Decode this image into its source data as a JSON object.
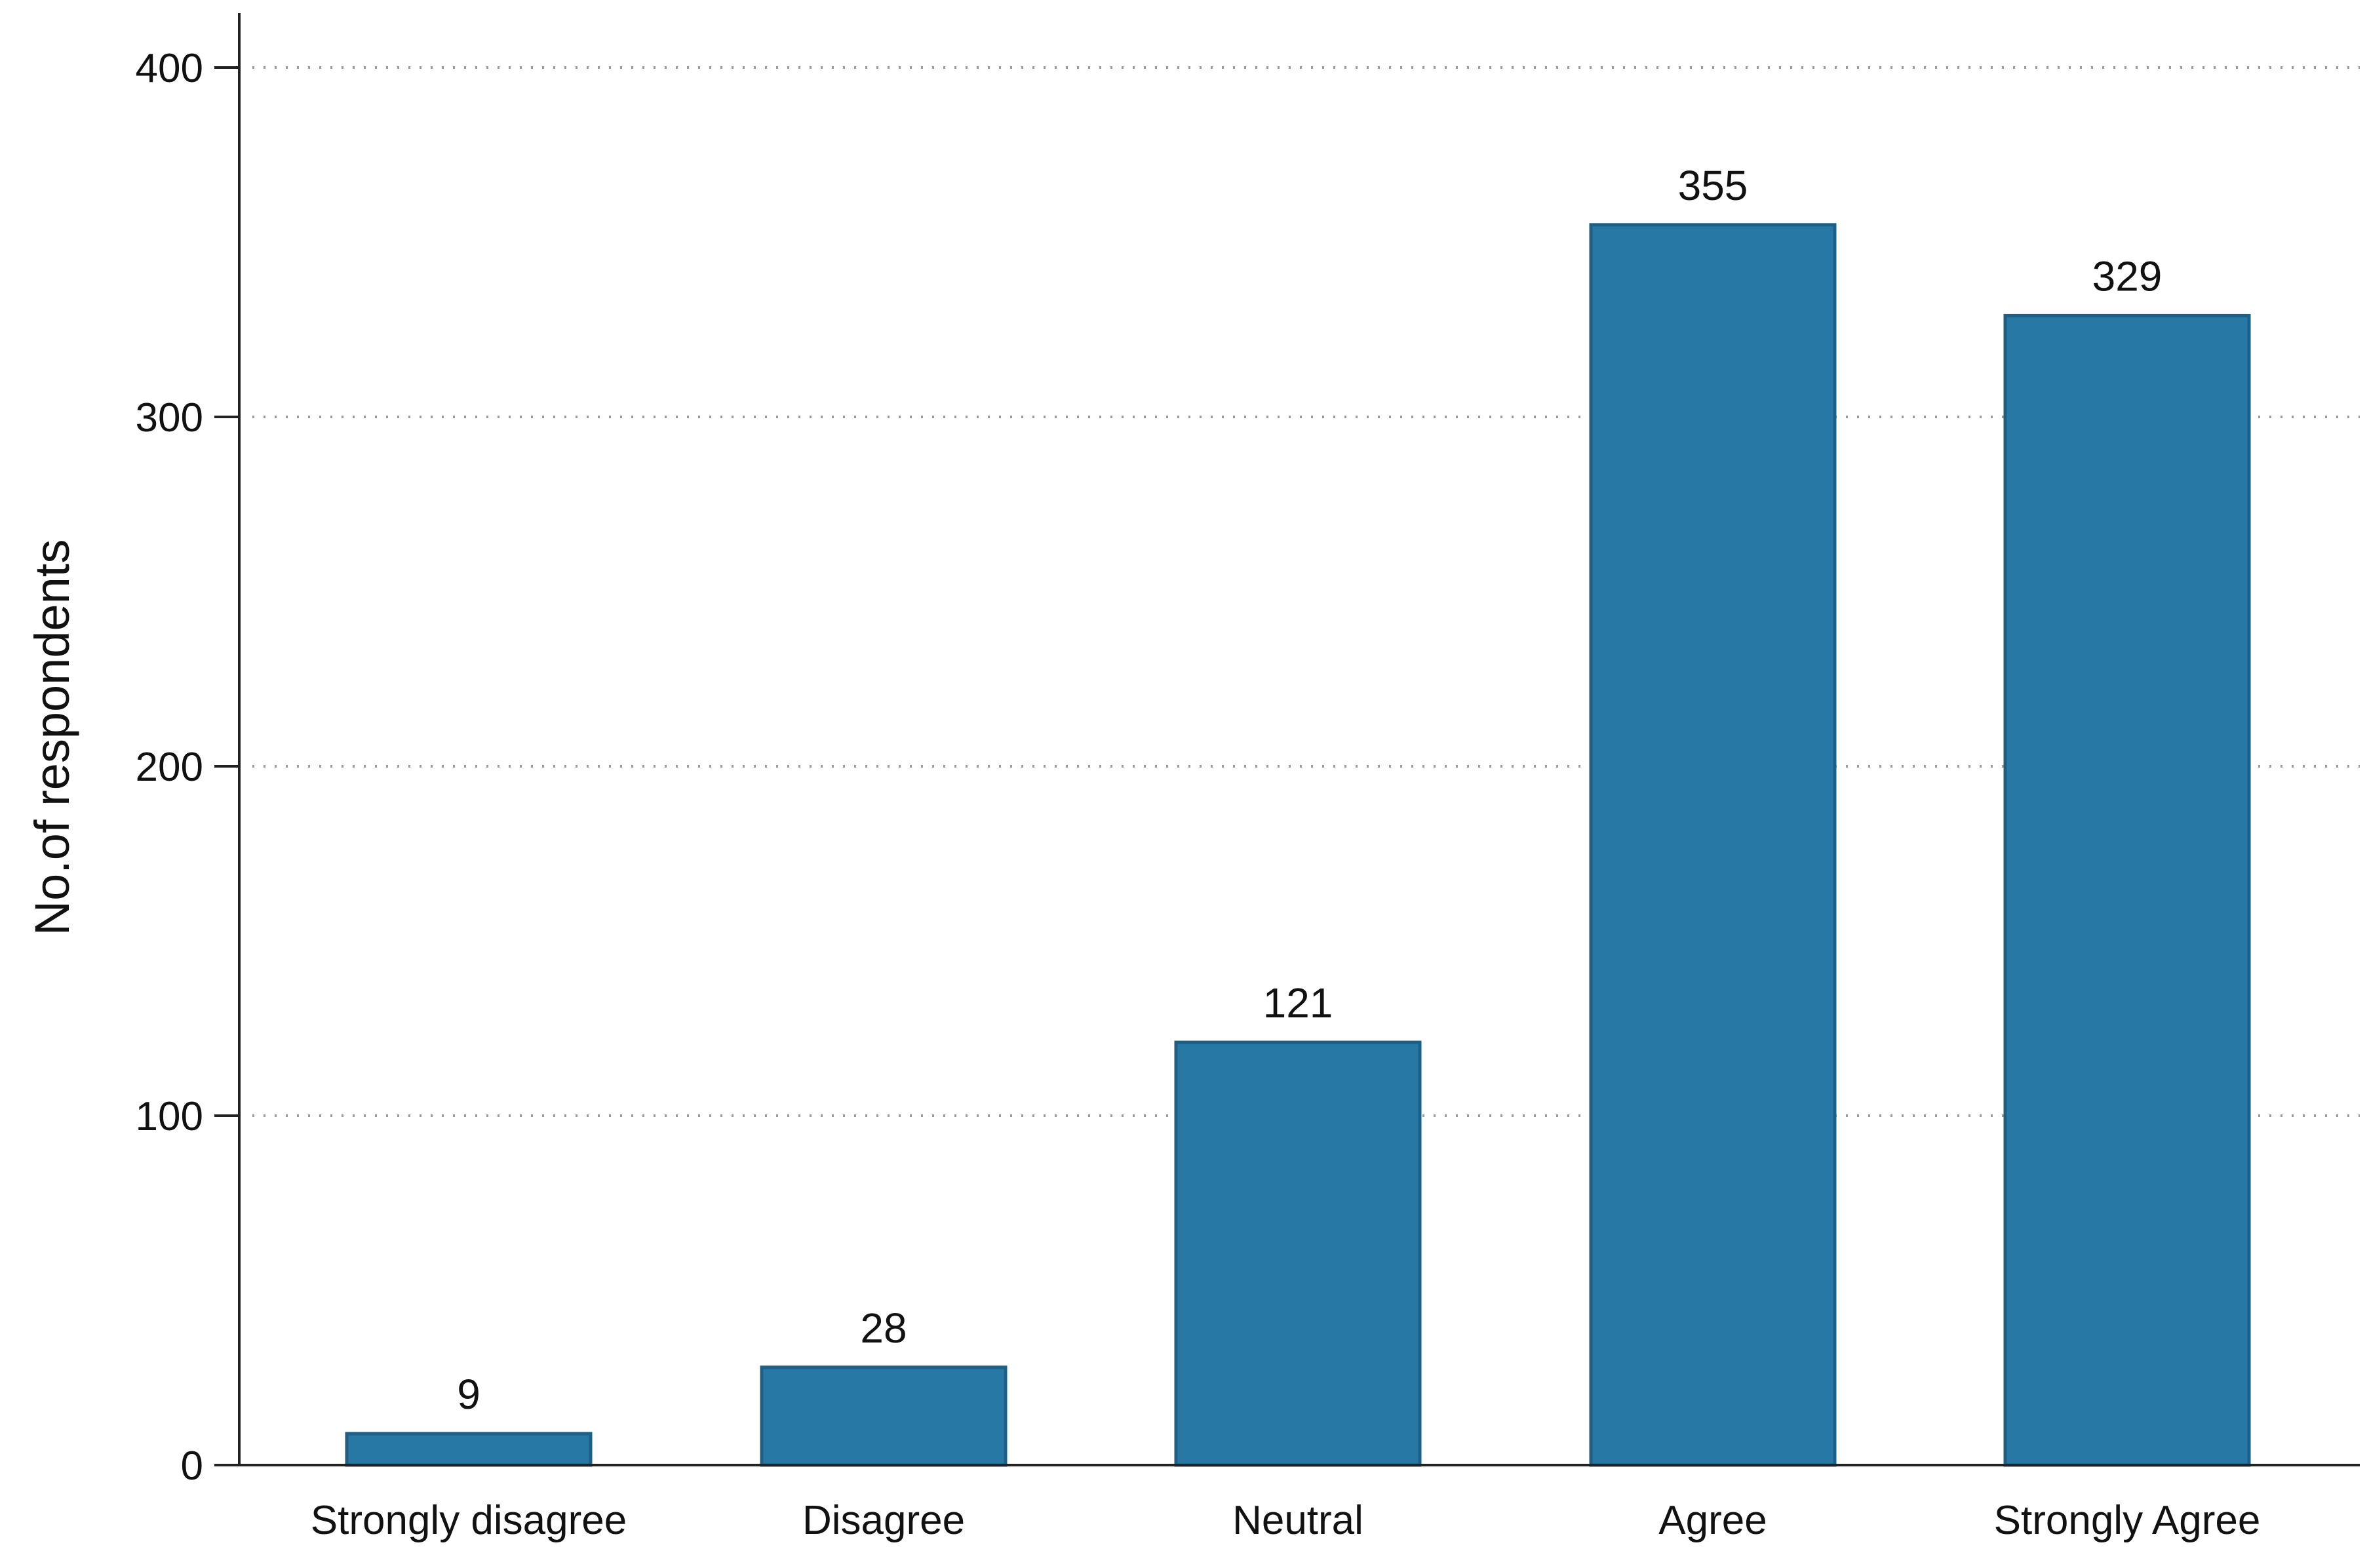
{
  "chart_data": {
    "type": "bar",
    "categories": [
      "Strongly disagree",
      "Disagree",
      "Neutral",
      "Agree",
      "Strongly Agree"
    ],
    "values": [
      9,
      28,
      121,
      355,
      329
    ],
    "data_labels": [
      "9",
      "28",
      "121",
      "355",
      "329"
    ],
    "title": "",
    "xlabel": "",
    "ylabel": "No.of respondents",
    "ylim": [
      0,
      400
    ],
    "yticks": [
      0,
      100,
      200,
      300,
      400
    ],
    "ytick_labels": [
      "0",
      "100",
      "200",
      "300",
      "400"
    ],
    "grid": true,
    "legend": "none",
    "colors": {
      "bar_fill": "#2878a6",
      "bar_stroke": "#1d5f85"
    }
  }
}
